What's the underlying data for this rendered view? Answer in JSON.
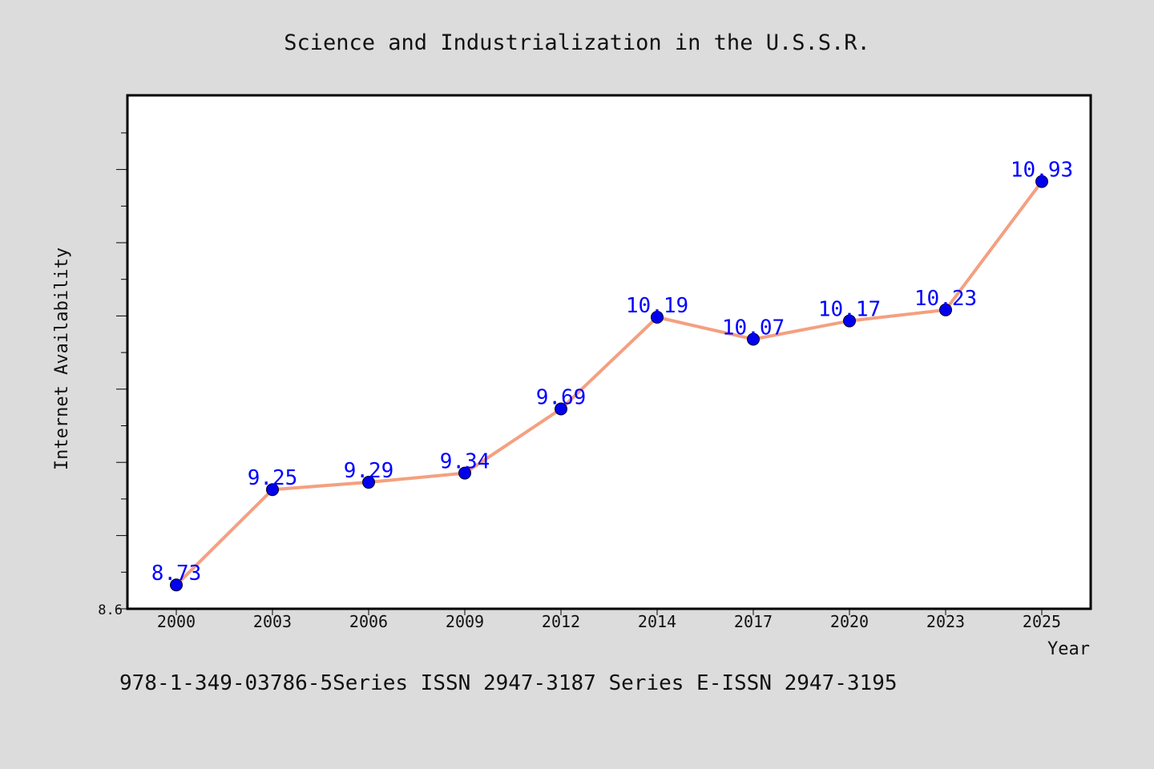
{
  "chart_data": {
    "type": "line",
    "title": "Science and Industrialization in the U.S.S.R.",
    "xlabel": "Year",
    "ylabel": "Internet Availability",
    "x": [
      "2000",
      "2003",
      "2006",
      "2009",
      "2012",
      "2014",
      "2017",
      "2020",
      "2023",
      "2025"
    ],
    "series": [
      {
        "values": [
          8.73,
          9.25,
          9.29,
          9.34,
          9.69,
          10.19,
          10.07,
          10.17,
          10.23,
          10.93
        ],
        "line_color": "#f4a080",
        "marker_color": "#0000ee",
        "label_color": "#0000ff"
      }
    ],
    "y_tick_labels": [
      "8.6"
    ],
    "ylim": [
      8.6,
      11.4
    ],
    "grid": false,
    "legend": "none"
  },
  "footer": {
    "text": "978-1-349-03786-5Series ISSN 2947-3187 Series E-ISSN 2947-3195"
  }
}
